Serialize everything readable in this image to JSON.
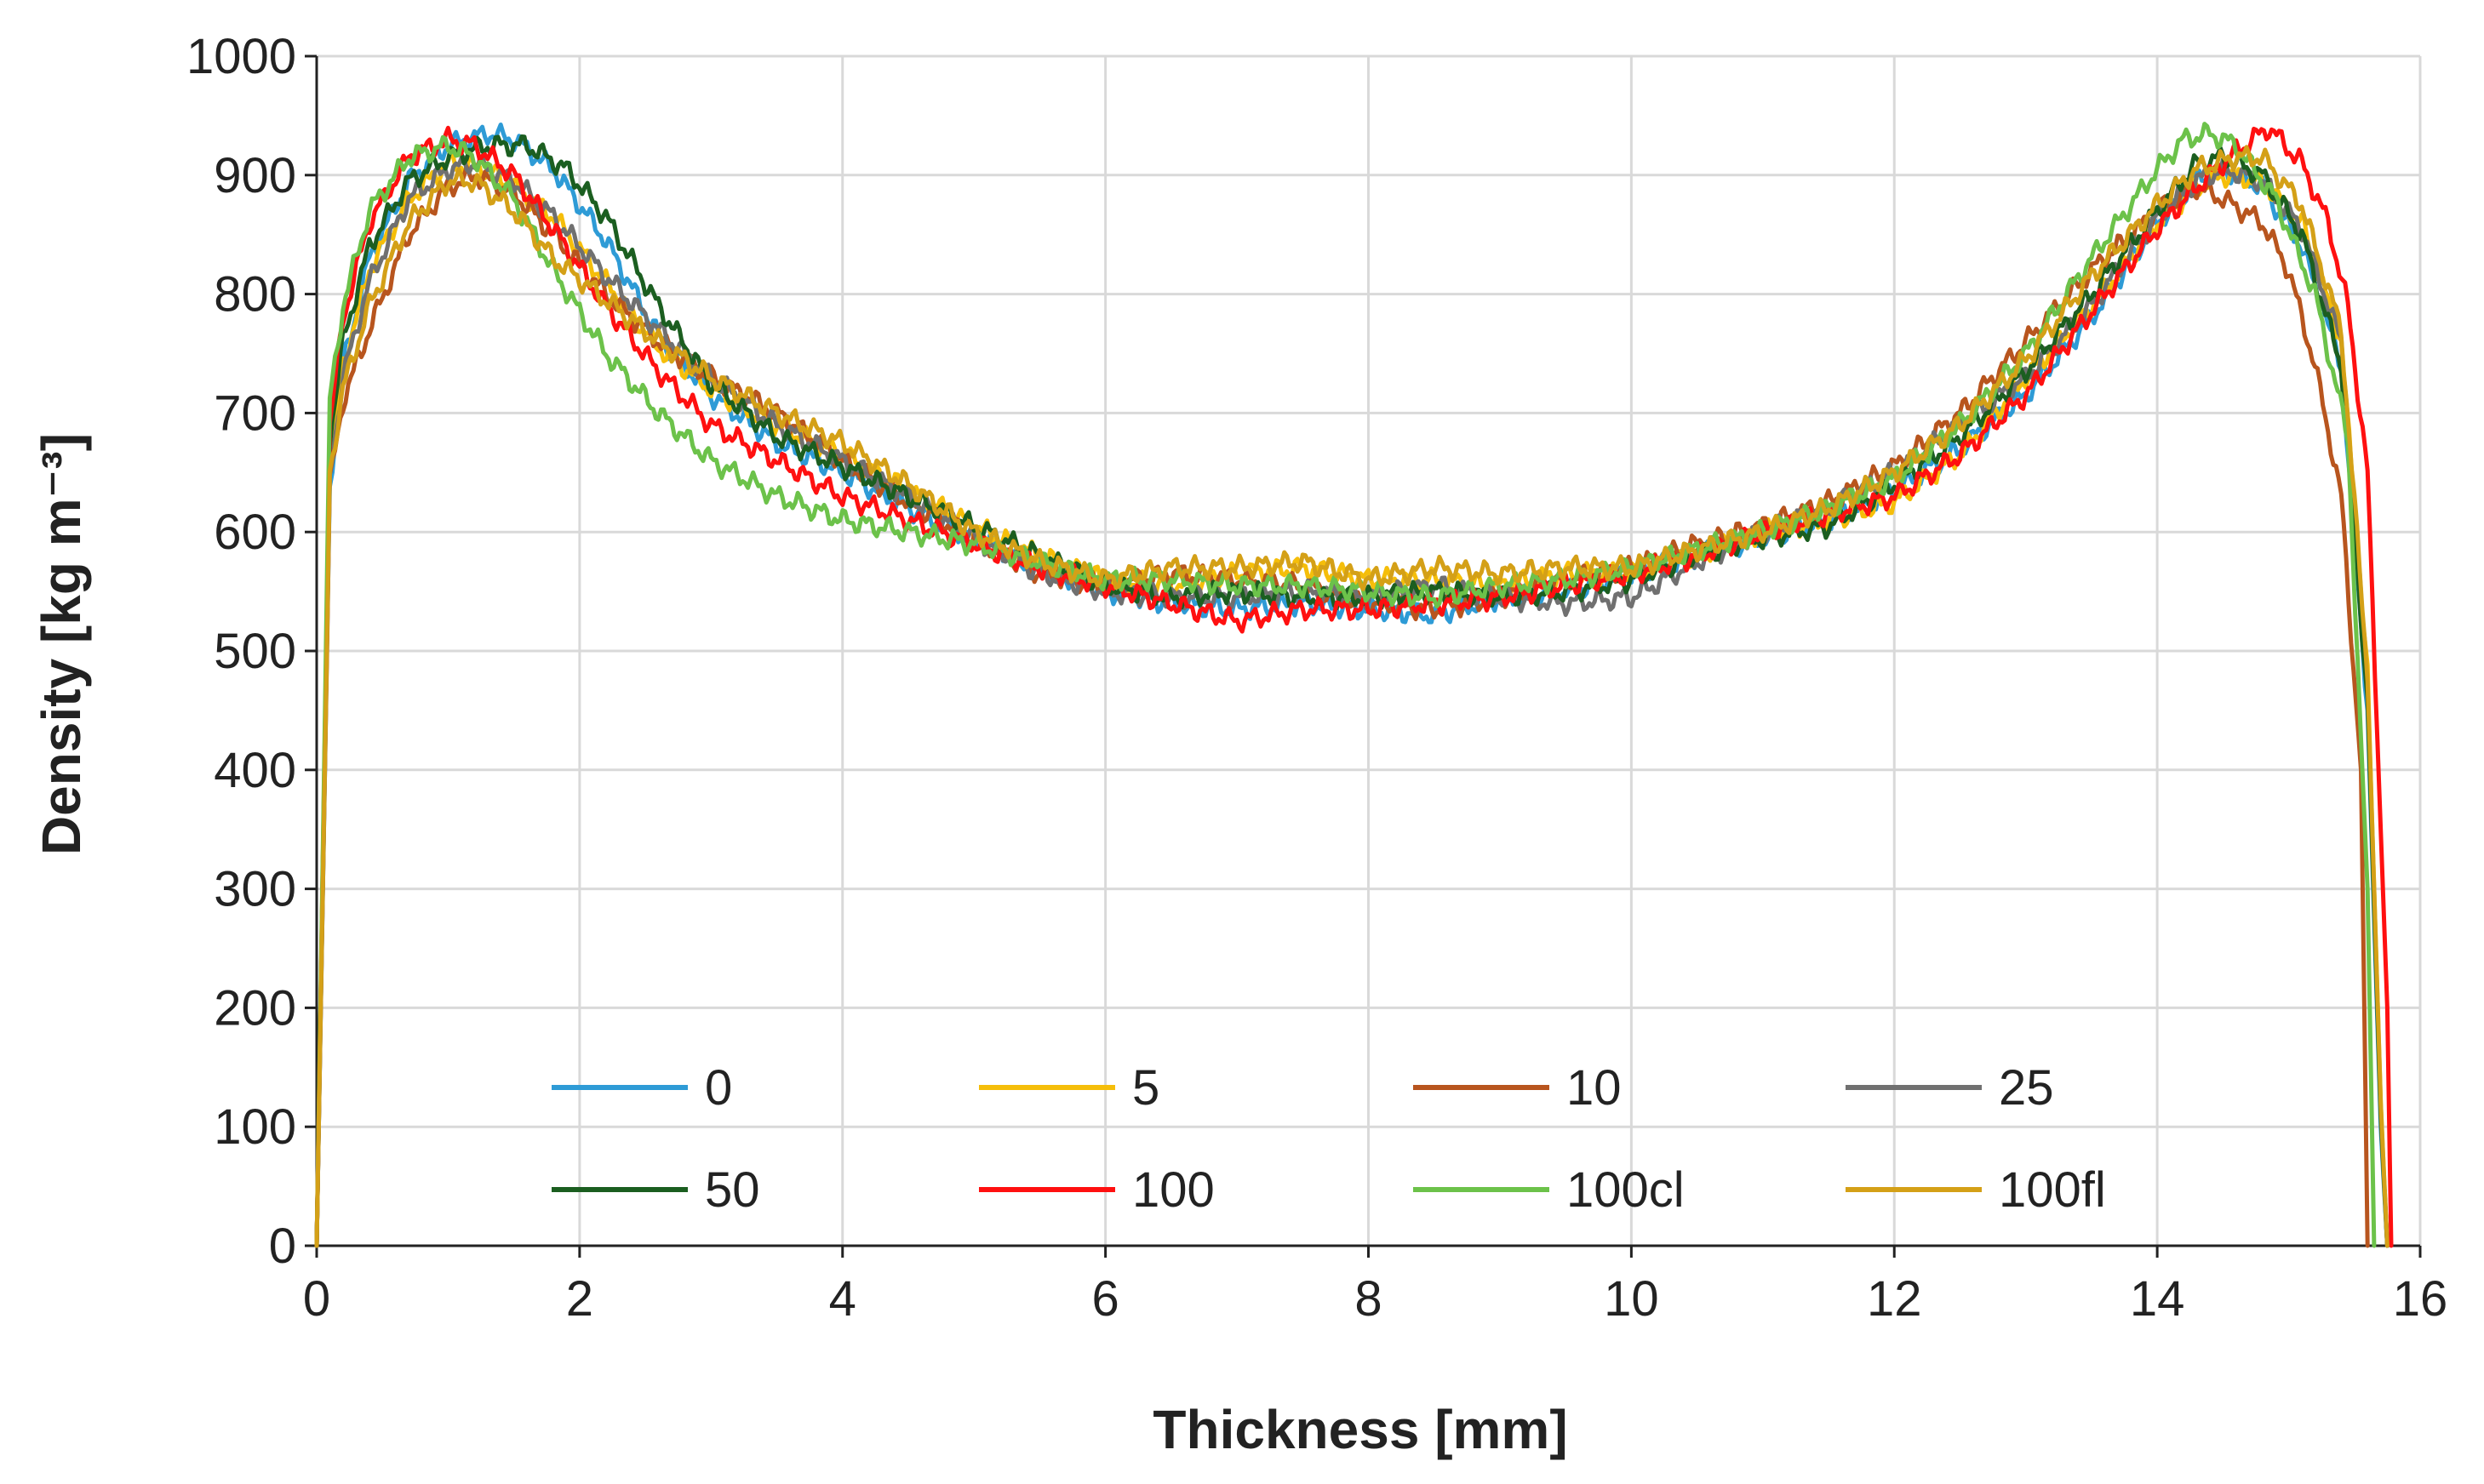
{
  "chart_data": {
    "type": "line",
    "title": "",
    "xlabel": "Thickness [mm]",
    "ylabel": "Density [kg m⁻³]",
    "xlim": [
      0,
      16
    ],
    "ylim": [
      0,
      1000
    ],
    "xticks": [
      0,
      2,
      4,
      6,
      8,
      10,
      12,
      14,
      16
    ],
    "yticks": [
      0,
      100,
      200,
      300,
      400,
      500,
      600,
      700,
      800,
      900,
      1000
    ],
    "grid": true,
    "legend_position": "bottom-center-inside",
    "series": [
      {
        "name": "0",
        "color": "#2E9BD6",
        "x": [
          0,
          0.1,
          0.2,
          0.4,
          0.7,
          1.0,
          1.3,
          1.5,
          1.8,
          2.2,
          2.6,
          3.0,
          3.5,
          4.0,
          4.5,
          5.0,
          5.5,
          6.0,
          6.5,
          7.0,
          7.5,
          8.0,
          8.5,
          9.0,
          9.5,
          10.0,
          10.5,
          11.0,
          11.5,
          12.0,
          12.5,
          13.0,
          13.5,
          14.0,
          14.3,
          14.5,
          14.8,
          15.1,
          15.4,
          15.6,
          15.7,
          15.75
        ],
        "y": [
          0,
          640,
          740,
          830,
          895,
          925,
          935,
          930,
          905,
          845,
          765,
          715,
          675,
          650,
          620,
          595,
          570,
          550,
          540,
          535,
          540,
          535,
          530,
          545,
          550,
          565,
          580,
          595,
          610,
          635,
          670,
          715,
          780,
          860,
          895,
          905,
          890,
          840,
          740,
          450,
          100,
          0
        ]
      },
      {
        "name": "5",
        "color": "#F5BE0A",
        "x": [
          0,
          0.1,
          0.2,
          0.4,
          0.7,
          1.0,
          1.3,
          1.5,
          1.8,
          2.2,
          2.6,
          3.0,
          3.5,
          4.0,
          4.5,
          5.0,
          5.5,
          6.0,
          6.5,
          7.0,
          7.5,
          8.0,
          8.5,
          9.0,
          9.5,
          10.0,
          10.5,
          11.0,
          11.5,
          12.0,
          12.5,
          13.0,
          13.5,
          14.0,
          14.3,
          14.5,
          14.8,
          15.1,
          15.4,
          15.6,
          15.7,
          15.75
        ],
        "y": [
          0,
          660,
          740,
          820,
          880,
          910,
          905,
          890,
          865,
          810,
          755,
          720,
          690,
          665,
          635,
          605,
          580,
          560,
          555,
          565,
          570,
          560,
          560,
          555,
          565,
          565,
          580,
          600,
          610,
          625,
          665,
          730,
          790,
          860,
          890,
          900,
          895,
          860,
          760,
          480,
          120,
          0
        ]
      },
      {
        "name": "10",
        "color": "#B8551E",
        "x": [
          0,
          0.1,
          0.2,
          0.4,
          0.7,
          1.0,
          1.2,
          1.5,
          1.8,
          2.2,
          2.6,
          3.0,
          3.5,
          4.0,
          4.5,
          5.0,
          5.5,
          6.0,
          6.5,
          7.0,
          7.5,
          8.0,
          8.5,
          9.0,
          9.5,
          10.0,
          10.5,
          11.0,
          11.5,
          12.0,
          12.5,
          13.0,
          13.5,
          14.0,
          14.3,
          14.5,
          14.8,
          15.0,
          15.2,
          15.4,
          15.55,
          15.6
        ],
        "y": [
          0,
          640,
          710,
          770,
          850,
          890,
          900,
          885,
          850,
          800,
          760,
          730,
          700,
          660,
          625,
          595,
          565,
          555,
          565,
          560,
          555,
          540,
          535,
          545,
          560,
          570,
          590,
          605,
          625,
          655,
          700,
          760,
          820,
          870,
          890,
          880,
          860,
          820,
          740,
          630,
          400,
          0
        ]
      },
      {
        "name": "25",
        "color": "#707070",
        "x": [
          0,
          0.1,
          0.2,
          0.4,
          0.7,
          1.0,
          1.2,
          1.5,
          1.8,
          2.2,
          2.6,
          3.0,
          3.5,
          4.0,
          4.5,
          5.0,
          5.5,
          6.0,
          6.5,
          7.0,
          7.5,
          8.0,
          8.5,
          9.0,
          9.5,
          10.0,
          10.5,
          11.0,
          11.5,
          12.0,
          12.5,
          13.0,
          13.5,
          14.0,
          14.3,
          14.5,
          14.8,
          15.1,
          15.4,
          15.6,
          15.7,
          15.75
        ],
        "y": [
          0,
          650,
          730,
          810,
          880,
          905,
          910,
          895,
          865,
          815,
          770,
          730,
          690,
          660,
          630,
          595,
          565,
          550,
          545,
          545,
          550,
          545,
          555,
          545,
          540,
          545,
          575,
          600,
          620,
          650,
          690,
          730,
          790,
          865,
          895,
          905,
          895,
          855,
          760,
          470,
          110,
          0
        ]
      },
      {
        "name": "50",
        "color": "#1B5E20",
        "x": [
          0,
          0.1,
          0.2,
          0.4,
          0.7,
          1.0,
          1.3,
          1.6,
          1.9,
          2.2,
          2.6,
          3.0,
          3.5,
          4.0,
          4.5,
          5.0,
          5.5,
          6.0,
          6.5,
          7.0,
          7.5,
          8.0,
          8.5,
          9.0,
          9.5,
          10.0,
          10.5,
          11.0,
          11.5,
          12.0,
          12.5,
          13.0,
          13.5,
          14.0,
          14.3,
          14.5,
          14.8,
          15.1,
          15.4,
          15.6,
          15.7,
          15.75
        ],
        "y": [
          0,
          680,
          760,
          840,
          895,
          915,
          925,
          925,
          905,
          865,
          790,
          725,
          680,
          655,
          630,
          605,
          580,
          555,
          545,
          550,
          545,
          545,
          550,
          545,
          550,
          560,
          580,
          595,
          605,
          640,
          680,
          735,
          800,
          870,
          910,
          915,
          900,
          850,
          740,
          460,
          110,
          0
        ]
      },
      {
        "name": "100",
        "color": "#FF1010",
        "x": [
          0,
          0.1,
          0.2,
          0.4,
          0.7,
          1.0,
          1.2,
          1.5,
          1.8,
          2.2,
          2.6,
          3.0,
          3.5,
          4.0,
          4.5,
          5.0,
          5.5,
          6.0,
          6.5,
          7.0,
          7.5,
          8.0,
          8.5,
          9.0,
          9.5,
          10.0,
          10.5,
          11.0,
          11.5,
          12.0,
          12.5,
          13.0,
          13.5,
          14.0,
          14.3,
          14.6,
          14.85,
          15.1,
          15.3,
          15.45,
          15.6,
          15.75,
          15.78
        ],
        "y": [
          0,
          690,
          780,
          860,
          915,
          930,
          925,
          900,
          855,
          790,
          735,
          690,
          660,
          630,
          610,
          590,
          570,
          555,
          540,
          525,
          535,
          535,
          540,
          545,
          555,
          565,
          580,
          600,
          615,
          630,
          665,
          715,
          785,
          855,
          890,
          920,
          940,
          910,
          860,
          790,
          650,
          200,
          0
        ]
      },
      {
        "name": "100cl",
        "color": "#6CC24A",
        "x": [
          0,
          0.1,
          0.2,
          0.4,
          0.7,
          1.0,
          1.2,
          1.5,
          1.8,
          2.2,
          2.6,
          3.0,
          3.5,
          4.0,
          4.5,
          5.0,
          5.5,
          6.0,
          6.5,
          7.0,
          7.5,
          8.0,
          8.5,
          9.0,
          9.5,
          10.0,
          10.5,
          11.0,
          11.5,
          12.0,
          12.5,
          13.0,
          13.5,
          14.0,
          14.2,
          14.4,
          14.6,
          14.9,
          15.2,
          15.45,
          15.6,
          15.65
        ],
        "y": [
          0,
          710,
          790,
          870,
          915,
          925,
          915,
          880,
          820,
          750,
          700,
          660,
          630,
          610,
          600,
          590,
          575,
          560,
          560,
          555,
          555,
          550,
          545,
          555,
          560,
          570,
          585,
          600,
          620,
          645,
          690,
          750,
          830,
          905,
          930,
          935,
          925,
          880,
          800,
          680,
          300,
          0
        ]
      },
      {
        "name": "100fl",
        "color": "#D4A017",
        "x": [
          0,
          0.1,
          0.2,
          0.4,
          0.7,
          1.0,
          1.2,
          1.5,
          1.8,
          2.2,
          2.6,
          3.0,
          3.5,
          4.0,
          4.5,
          5.0,
          5.5,
          6.0,
          6.5,
          7.0,
          7.5,
          8.0,
          8.5,
          9.0,
          9.5,
          10.0,
          10.5,
          11.0,
          11.5,
          12.0,
          12.5,
          13.0,
          13.5,
          14.0,
          14.3,
          14.6,
          14.8,
          15.1,
          15.4,
          15.6,
          15.7,
          15.75
        ],
        "y": [
          0,
          650,
          720,
          790,
          860,
          895,
          895,
          870,
          830,
          795,
          760,
          730,
          700,
          675,
          640,
          600,
          575,
          560,
          570,
          570,
          575,
          560,
          570,
          565,
          570,
          570,
          585,
          600,
          620,
          650,
          690,
          745,
          815,
          875,
          905,
          915,
          915,
          875,
          770,
          480,
          120,
          0
        ]
      }
    ]
  }
}
